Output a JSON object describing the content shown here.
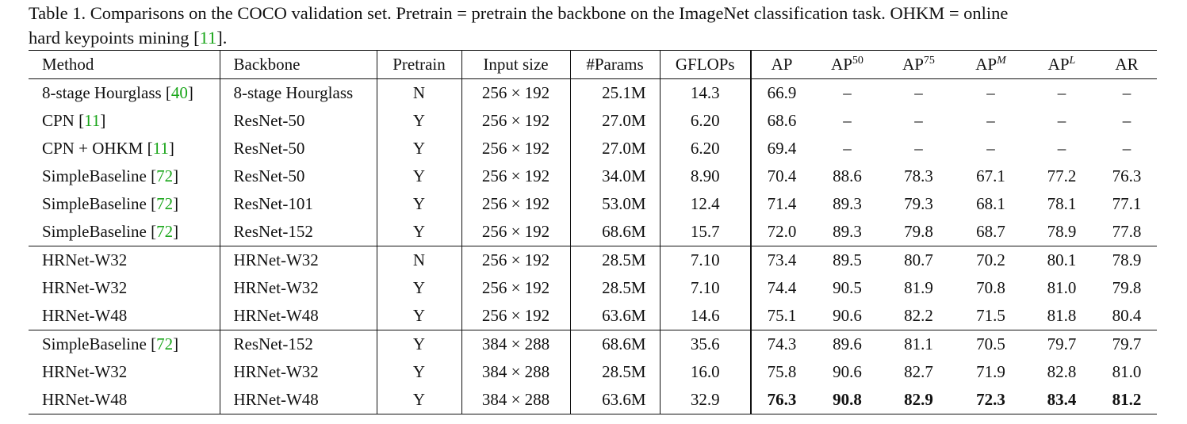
{
  "caption": {
    "line1": "Table 1. Comparisons on the COCO validation set. Pretrain = pretrain the backbone on the ImageNet classification task. OHKM = online",
    "line2_prefix": "hard keypoints mining [",
    "line2_cite": "11",
    "line2_suffix": "]."
  },
  "headers": {
    "method": "Method",
    "backbone": "Backbone",
    "pretrain": "Pretrain",
    "input_size": "Input size",
    "params": "#Params",
    "gflops": "GFLOPs",
    "ap": "AP",
    "ap50_base": "AP",
    "ap50_sup": "50",
    "ap75_base": "AP",
    "ap75_sup": "75",
    "apm_base": "AP",
    "apm_sup": "M",
    "apl_base": "AP",
    "apl_sup": "L",
    "ar": "AR"
  },
  "rows": [
    {
      "method": "8-stage Hourglass [",
      "cite": "40",
      "close": "]",
      "backbone": "8-stage Hourglass",
      "pretrain": "N",
      "input": "256 × 192",
      "params": "25.1M",
      "gflops": "14.3",
      "ap": "66.9",
      "ap50": "–",
      "ap75": "–",
      "apm": "–",
      "apl": "–",
      "ar": "–"
    },
    {
      "method": "CPN [",
      "cite": "11",
      "close": "]",
      "backbone": "ResNet-50",
      "pretrain": "Y",
      "input": "256 × 192",
      "params": "27.0M",
      "gflops": "6.20",
      "ap": "68.6",
      "ap50": "–",
      "ap75": "–",
      "apm": "–",
      "apl": "–",
      "ar": "–"
    },
    {
      "method": "CPN + OHKM [",
      "cite": "11",
      "close": "]",
      "backbone": "ResNet-50",
      "pretrain": "Y",
      "input": "256 × 192",
      "params": "27.0M",
      "gflops": "6.20",
      "ap": "69.4",
      "ap50": "–",
      "ap75": "–",
      "apm": "–",
      "apl": "–",
      "ar": "–"
    },
    {
      "method": "SimpleBaseline [",
      "cite": "72",
      "close": "]",
      "backbone": "ResNet-50",
      "pretrain": "Y",
      "input": "256 × 192",
      "params": "34.0M",
      "gflops": "8.90",
      "ap": "70.4",
      "ap50": "88.6",
      "ap75": "78.3",
      "apm": "67.1",
      "apl": "77.2",
      "ar": "76.3"
    },
    {
      "method": "SimpleBaseline [",
      "cite": "72",
      "close": "]",
      "backbone": "ResNet-101",
      "pretrain": "Y",
      "input": "256 × 192",
      "params": "53.0M",
      "gflops": "12.4",
      "ap": "71.4",
      "ap50": "89.3",
      "ap75": "79.3",
      "apm": "68.1",
      "apl": "78.1",
      "ar": "77.1"
    },
    {
      "method": "SimpleBaseline [",
      "cite": "72",
      "close": "]",
      "backbone": "ResNet-152",
      "pretrain": "Y",
      "input": "256 × 192",
      "params": "68.6M",
      "gflops": "15.7",
      "ap": "72.0",
      "ap50": "89.3",
      "ap75": "79.8",
      "apm": "68.7",
      "apl": "78.9",
      "ar": "77.8"
    },
    {
      "method": "HRNet-W32",
      "cite": "",
      "close": "",
      "backbone": "HRNet-W32",
      "pretrain": "N",
      "input": "256 × 192",
      "params": "28.5M",
      "gflops": "7.10",
      "ap": "73.4",
      "ap50": "89.5",
      "ap75": "80.7",
      "apm": "70.2",
      "apl": "80.1",
      "ar": "78.9"
    },
    {
      "method": "HRNet-W32",
      "cite": "",
      "close": "",
      "backbone": "HRNet-W32",
      "pretrain": "Y",
      "input": "256 × 192",
      "params": "28.5M",
      "gflops": "7.10",
      "ap": "74.4",
      "ap50": "90.5",
      "ap75": "81.9",
      "apm": "70.8",
      "apl": "81.0",
      "ar": "79.8"
    },
    {
      "method": "HRNet-W48",
      "cite": "",
      "close": "",
      "backbone": "HRNet-W48",
      "pretrain": "Y",
      "input": "256 × 192",
      "params": "63.6M",
      "gflops": "14.6",
      "ap": "75.1",
      "ap50": "90.6",
      "ap75": "82.2",
      "apm": "71.5",
      "apl": "81.8",
      "ar": "80.4"
    },
    {
      "method": "SimpleBaseline [",
      "cite": "72",
      "close": "]",
      "backbone": "ResNet-152",
      "pretrain": "Y",
      "input": "384 × 288",
      "params": "68.6M",
      "gflops": "35.6",
      "ap": "74.3",
      "ap50": "89.6",
      "ap75": "81.1",
      "apm": "70.5",
      "apl": "79.7",
      "ar": "79.7"
    },
    {
      "method": "HRNet-W32",
      "cite": "",
      "close": "",
      "backbone": "HRNet-W32",
      "pretrain": "Y",
      "input": "384 × 288",
      "params": "28.5M",
      "gflops": "16.0",
      "ap": "75.8",
      "ap50": "90.6",
      "ap75": "82.7",
      "apm": "71.9",
      "apl": "82.8",
      "ar": "81.0"
    },
    {
      "method": "HRNet-W48",
      "cite": "",
      "close": "",
      "backbone": "HRNet-W48",
      "pretrain": "Y",
      "input": "384 × 288",
      "params": "63.6M",
      "gflops": "32.9",
      "ap": "76.3",
      "ap50": "90.8",
      "ap75": "82.9",
      "apm": "72.3",
      "apl": "83.4",
      "ar": "81.2"
    }
  ],
  "group_starts": [
    6,
    9
  ],
  "bold_row": 11
}
